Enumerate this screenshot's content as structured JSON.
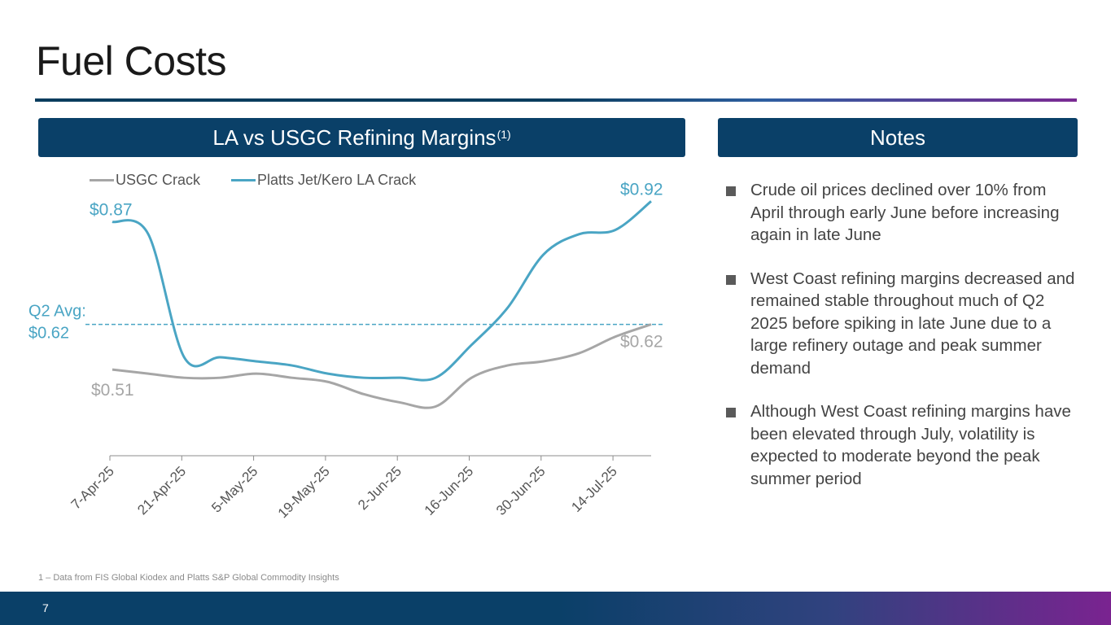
{
  "title": "Fuel Costs",
  "chart_panel": {
    "heading": "LA vs USGC Refining Margins",
    "heading_sup": "(1)"
  },
  "notes_panel": {
    "heading": "Notes",
    "items": [
      "Crude oil prices declined over 10% from April through early June before increasing again in late June",
      "West Coast refining margins decreased and remained stable throughout much of Q2 2025 before spiking in late June due to a large refinery outage and peak summer demand",
      "Although West Coast refining margins have been elevated through July, volatility is expected to moderate beyond the peak summer period"
    ]
  },
  "colors": {
    "usgc": "#a6a6a6",
    "la": "#4aa5c4",
    "navy": "#0a4068"
  },
  "chart_data": {
    "type": "line",
    "title": "LA vs USGC Refining Margins",
    "xlabel": "",
    "ylabel": "",
    "ylim": [
      0.3,
      1.0
    ],
    "x_ticks": [
      "7-Apr-25",
      "21-Apr-25",
      "5-May-25",
      "19-May-25",
      "2-Jun-25",
      "16-Jun-25",
      "30-Jun-25",
      "14-Jul-25"
    ],
    "x_range": [
      0,
      15
    ],
    "series": [
      {
        "name": "USGC Crack",
        "x": [
          0,
          1,
          2,
          3,
          4,
          5,
          6,
          7,
          8,
          9,
          10,
          11,
          12,
          13,
          14,
          15
        ],
        "values": [
          0.51,
          0.5,
          0.49,
          0.49,
          0.5,
          0.49,
          0.48,
          0.45,
          0.43,
          0.42,
          0.49,
          0.52,
          0.53,
          0.55,
          0.59,
          0.62
        ]
      },
      {
        "name": "Platts Jet/Kero LA Crack",
        "x": [
          0,
          1,
          2,
          3,
          4,
          5,
          6,
          7,
          8,
          9,
          10,
          11,
          12,
          13,
          14,
          15
        ],
        "values": [
          0.87,
          0.84,
          0.54,
          0.54,
          0.53,
          0.52,
          0.5,
          0.49,
          0.49,
          0.49,
          0.57,
          0.66,
          0.79,
          0.84,
          0.85,
          0.92
        ]
      }
    ],
    "reference_line": {
      "label": "Q2 Avg:",
      "value_label": "$0.62",
      "value": 0.62
    },
    "annotations": [
      {
        "series": "Platts Jet/Kero LA Crack",
        "point": "first",
        "text": "$0.87"
      },
      {
        "series": "Platts Jet/Kero LA Crack",
        "point": "last",
        "text": "$0.92"
      },
      {
        "series": "USGC Crack",
        "point": "first",
        "text": "$0.51"
      },
      {
        "series": "USGC Crack",
        "point": "last",
        "text": "$0.62"
      }
    ]
  },
  "footnote": "1 – Data from FIS Global Kiodex and Platts S&P Global Commodity Insights",
  "page_number": "7"
}
